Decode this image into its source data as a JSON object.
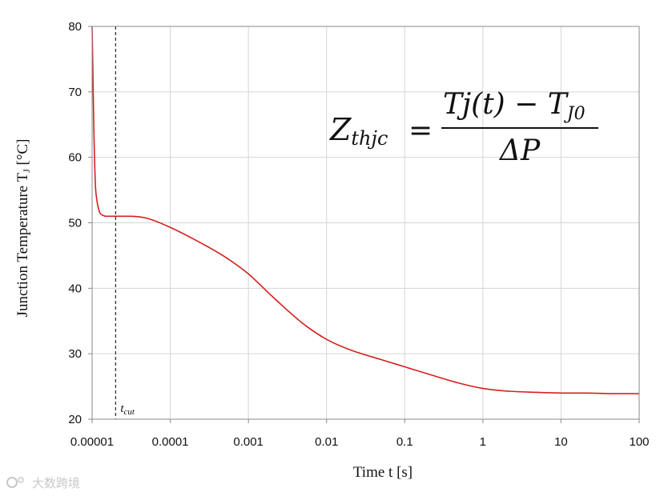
{
  "chart_data": {
    "type": "line",
    "title": "",
    "xlabel": "Time t [s]",
    "ylabel": "Junction Temperature T",
    "ylabel_sub": "J",
    "ylabel_unit": " [°C]",
    "xscale": "log",
    "xlim": [
      1e-05,
      100
    ],
    "ylim": [
      20,
      80
    ],
    "grid": true,
    "x_ticks": [
      "0.00001",
      "0.0001",
      "0.001",
      "0.01",
      "0.1",
      "1",
      "10",
      "100"
    ],
    "y_ticks": [
      "20",
      "30",
      "40",
      "50",
      "60",
      "70",
      "80"
    ],
    "line_color": "#d42020",
    "series": [
      {
        "x": [
          1e-05,
          1.02e-05,
          1.05e-05,
          1.1e-05,
          1.15e-05,
          1.2e-05,
          1.25e-05,
          1.3e-05,
          1.4e-05,
          1.5e-05,
          1.6e-05,
          1.8e-05,
          2e-05,
          3e-05,
          5e-05,
          0.0001,
          0.0002,
          0.0005,
          0.001,
          0.002,
          0.005,
          0.01,
          0.02,
          0.05,
          0.1,
          0.2,
          0.5,
          1,
          2,
          5,
          10,
          20,
          50,
          100
        ],
        "y": [
          80,
          74,
          65,
          56,
          53.5,
          52.3,
          51.6,
          51.3,
          51.1,
          51.0,
          51.0,
          51.0,
          51.0,
          51.0,
          50.7,
          49.3,
          47.5,
          44.8,
          42.2,
          38.8,
          34.6,
          32.2,
          30.6,
          29.1,
          28.0,
          26.9,
          25.5,
          24.7,
          24.3,
          24.1,
          24.0,
          24.0,
          23.9,
          23.9
        ]
      }
    ],
    "annotations": {
      "tcut": {
        "x": 2e-05,
        "label": "t",
        "label_sub": "cut"
      },
      "formula": {
        "lhs": "Z",
        "lhs_sub": "thjc",
        "equals": "=",
        "numerator": "Tj(t) − T",
        "numerator_sub": "J0",
        "denominator": "ΔP"
      }
    }
  },
  "watermark": "大数跨境"
}
